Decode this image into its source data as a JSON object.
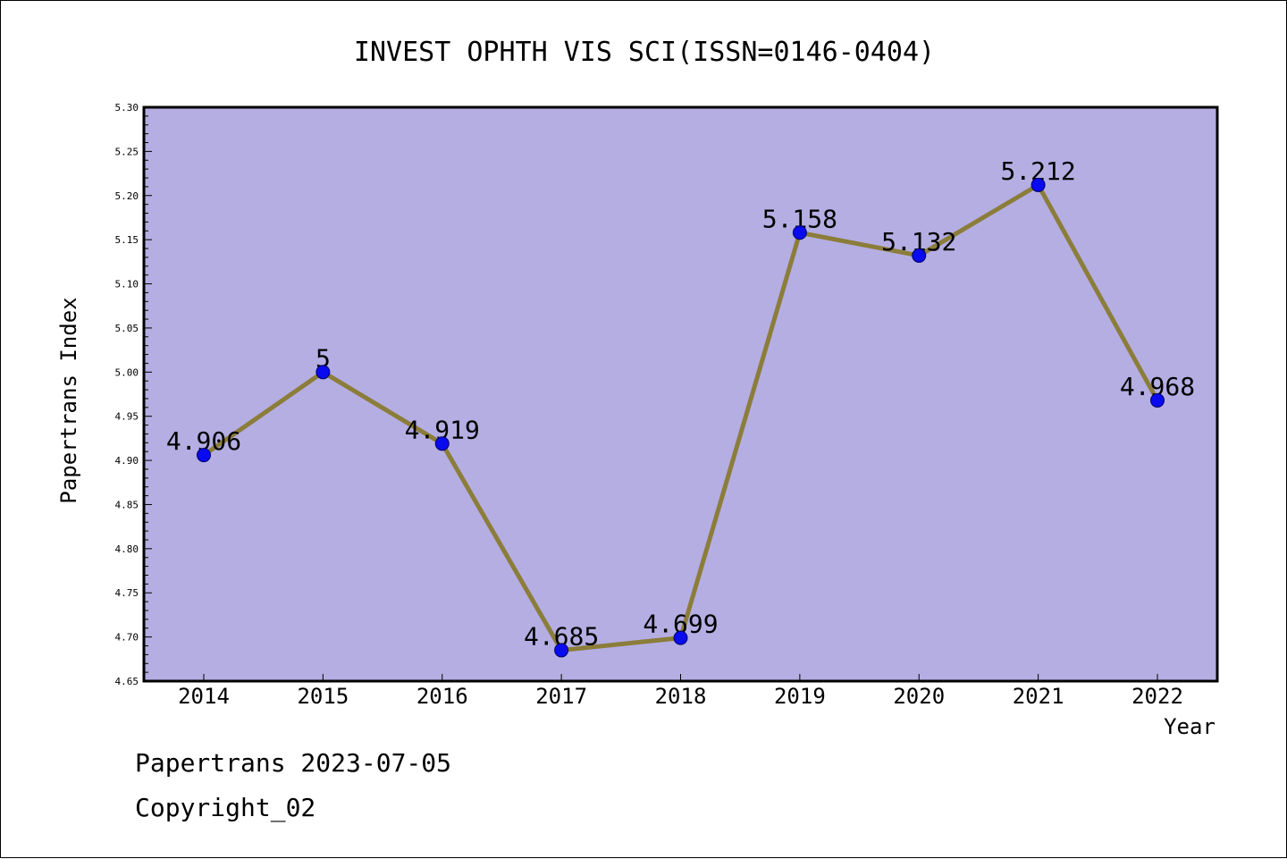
{
  "chart_data": {
    "type": "line",
    "title": "INVEST OPHTH VIS SCI(ISSN=0146-0404)",
    "xlabel": "Year",
    "ylabel": "Papertrans Index",
    "categories": [
      "2014",
      "2015",
      "2016",
      "2017",
      "2018",
      "2019",
      "2020",
      "2021",
      "2022"
    ],
    "series": [
      {
        "values": [
          4.906,
          5.0,
          4.919,
          4.685,
          4.699,
          5.158,
          5.132,
          5.212,
          4.968
        ]
      }
    ],
    "point_labels": [
      "4.906",
      "5",
      "4.919",
      "4.685",
      "4.699",
      "5.158",
      "5.132",
      "5.212",
      "4.968"
    ],
    "ylim": [
      4.65,
      5.3
    ],
    "yticks": [
      "4.65",
      "4.70",
      "4.75",
      "4.80",
      "4.85",
      "4.90",
      "4.95",
      "5.00",
      "5.05",
      "5.10",
      "5.15",
      "5.20",
      "5.25",
      "5.30"
    ],
    "grid": false,
    "legend": "none",
    "colors": {
      "plot_background": "#b5aee3",
      "line": "#8b7d3a",
      "marker": "#0a0af0",
      "marker_edge": "#000066"
    }
  },
  "footer": {
    "line1": "Papertrans 2023-07-05",
    "line2": "Copyright_02"
  }
}
